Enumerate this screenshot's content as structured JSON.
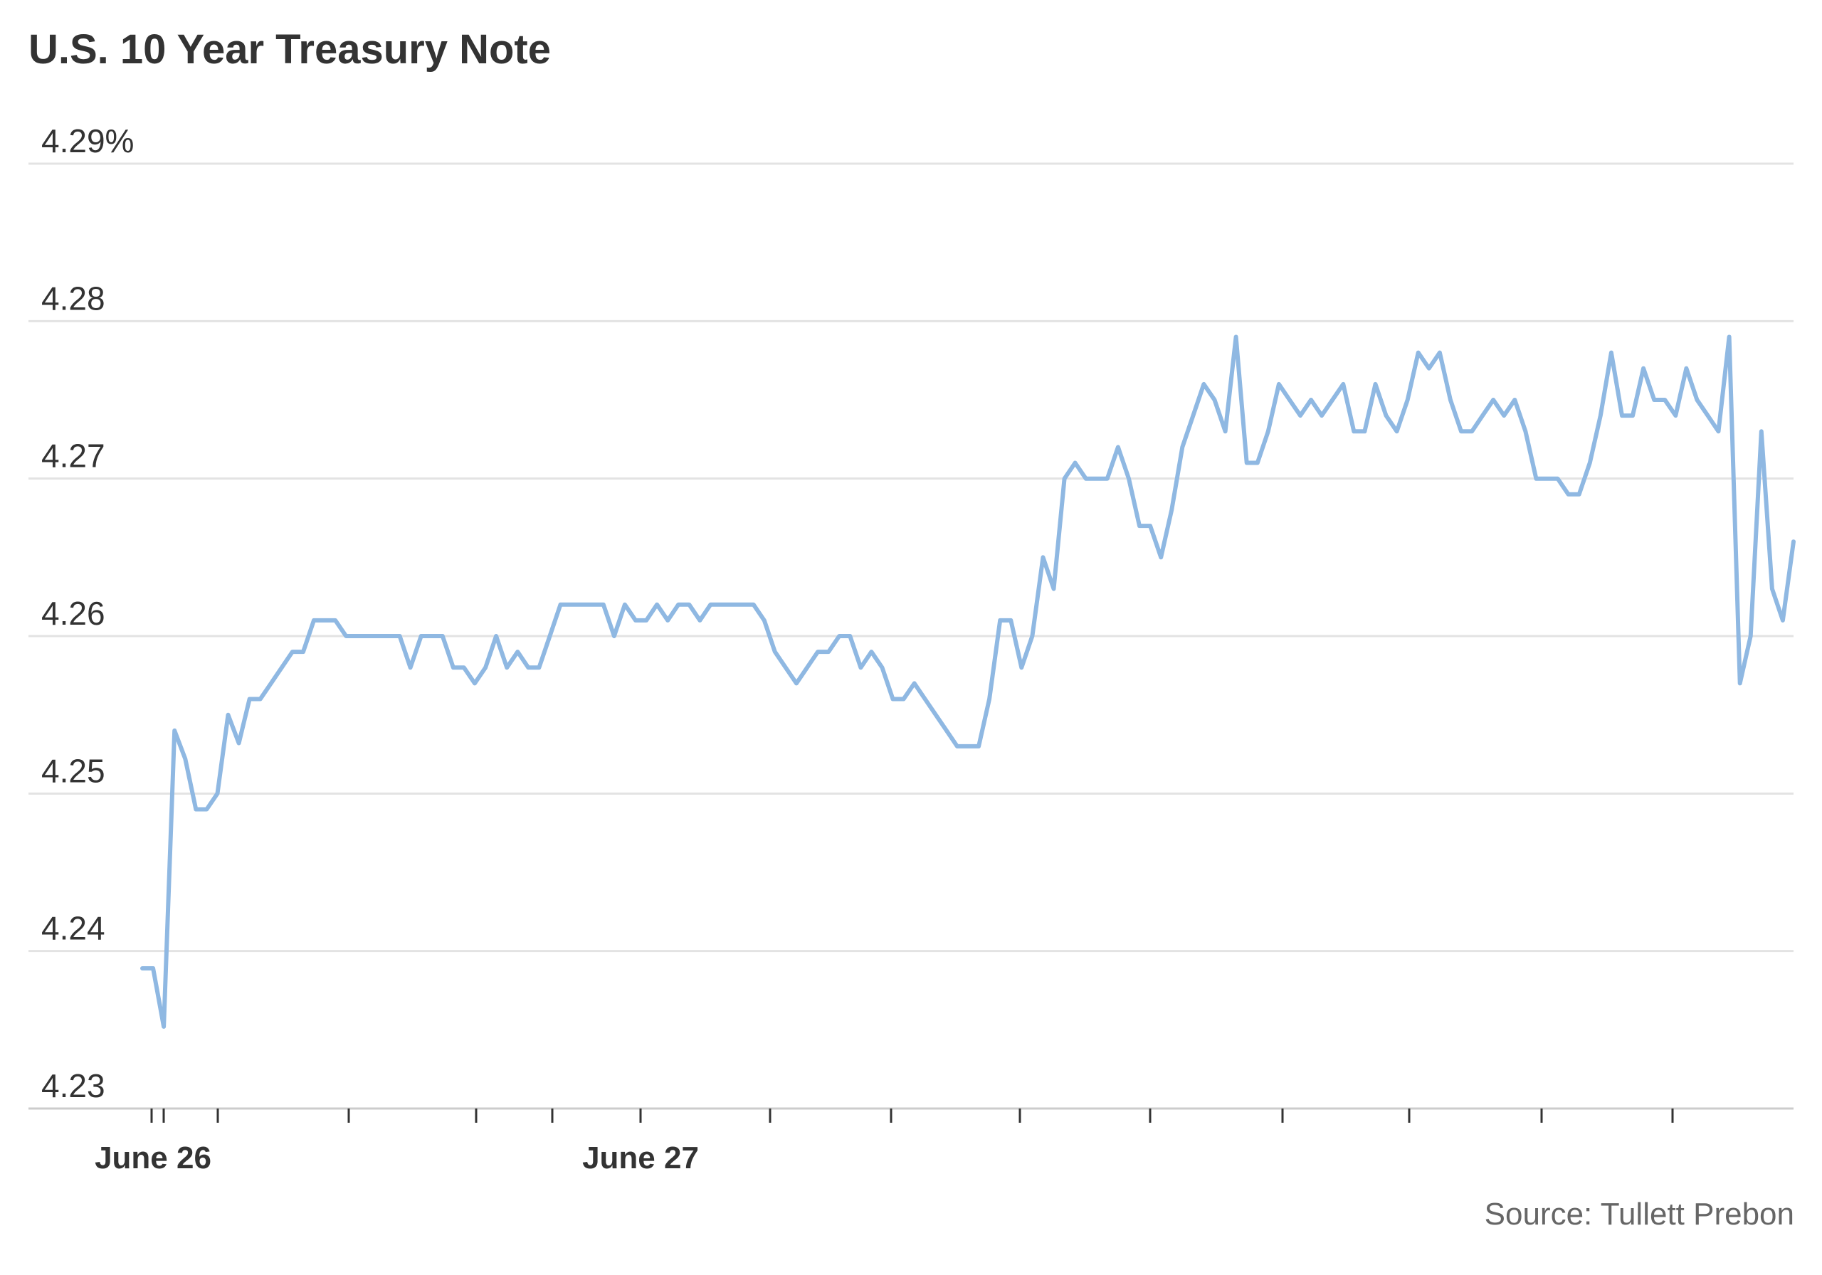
{
  "chart_data": {
    "type": "line",
    "title": "U.S. 10 Year Treasury Note",
    "source": "Source: Tullett Prebon",
    "ylim": [
      4.23,
      4.29
    ],
    "y_ticks": [
      4.23,
      4.24,
      4.25,
      4.26,
      4.27,
      4.28,
      4.29
    ],
    "y_tick_labels": [
      "4.23",
      "4.24",
      "4.25",
      "4.26",
      "4.27",
      "4.28",
      "4.29%"
    ],
    "x_labels": [
      "June 26",
      "June 27"
    ],
    "grid": true,
    "colors": {
      "line": "#8fb8e2",
      "grid": "#e3e3e3",
      "text": "#333333",
      "source": "#666666"
    },
    "series": [
      {
        "values": [
          4.2389,
          4.2389,
          4.2352,
          4.254,
          4.2522,
          4.249,
          4.249,
          4.25,
          4.255,
          4.2532,
          4.256,
          4.256,
          4.257,
          4.258,
          4.259,
          4.259,
          4.261,
          4.261,
          4.261,
          4.26,
          4.26,
          4.26,
          4.26,
          4.26,
          4.26,
          4.258,
          4.26,
          4.26,
          4.26,
          4.258,
          4.258,
          4.257,
          4.258,
          4.26,
          4.258,
          4.259,
          4.258,
          4.258,
          4.26,
          4.262,
          4.262,
          4.262,
          4.262,
          4.262,
          4.26,
          4.262,
          4.261,
          4.261,
          4.262,
          4.261,
          4.262,
          4.262,
          4.261,
          4.262,
          4.262,
          4.262,
          4.262,
          4.262,
          4.261,
          4.259,
          4.258,
          4.257,
          4.258,
          4.259,
          4.259,
          4.26,
          4.26,
          4.258,
          4.259,
          4.258,
          4.256,
          4.256,
          4.257,
          4.256,
          4.255,
          4.254,
          4.253,
          4.253,
          4.253,
          4.256,
          4.261,
          4.261,
          4.258,
          4.26,
          4.265,
          4.263,
          4.27,
          4.271,
          4.27,
          4.27,
          4.27,
          4.272,
          4.27,
          4.267,
          4.267,
          4.265,
          4.268,
          4.272,
          4.274,
          4.276,
          4.275,
          4.273,
          4.279,
          4.271,
          4.271,
          4.273,
          4.276,
          4.275,
          4.274,
          4.275,
          4.274,
          4.275,
          4.276,
          4.273,
          4.273,
          4.276,
          4.274,
          4.273,
          4.275,
          4.278,
          4.277,
          4.278,
          4.275,
          4.273,
          4.273,
          4.274,
          4.275,
          4.274,
          4.275,
          4.273,
          4.27,
          4.27,
          4.27,
          4.269,
          4.269,
          4.271,
          4.274,
          4.278,
          4.274,
          4.274,
          4.277,
          4.275,
          4.275,
          4.274,
          4.277,
          4.275,
          4.274,
          4.273,
          4.279,
          4.257,
          4.26,
          4.273,
          4.263,
          4.261,
          4.266
        ]
      }
    ]
  }
}
